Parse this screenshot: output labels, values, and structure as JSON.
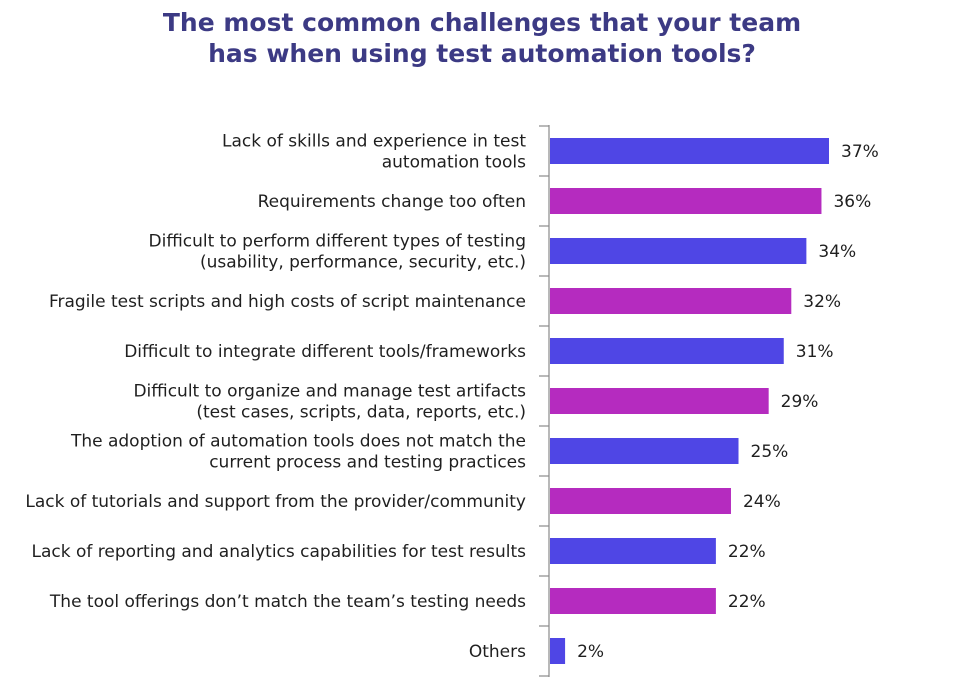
{
  "chart_data": {
    "type": "bar",
    "orientation": "horizontal",
    "title_lines": [
      "The most common challenges that your team",
      "has when using test automation tools?"
    ],
    "categories": [
      [
        "Lack of skills and experience in test",
        "automation tools"
      ],
      [
        "Requirements change too often"
      ],
      [
        "Difficult to perform different types of testing",
        "(usability, performance, security, etc.)"
      ],
      [
        "Fragile test scripts and high costs of script maintenance"
      ],
      [
        "Difficult to integrate different tools/frameworks"
      ],
      [
        "Difficult to organize and manage test artifacts",
        "(test cases, scripts, data, reports, etc.)"
      ],
      [
        "The adoption of automation tools does not match the",
        "current process and testing practices"
      ],
      [
        "Lack of tutorials and support from the provider/community"
      ],
      [
        "Lack of reporting and analytics capabilities for test results"
      ],
      [
        "The tool offerings don’t match the team’s testing needs"
      ],
      [
        "Others"
      ]
    ],
    "values": [
      37,
      36,
      34,
      32,
      31,
      29,
      25,
      24,
      22,
      22,
      2
    ],
    "value_labels": [
      "37%",
      "36%",
      "34%",
      "32%",
      "31%",
      "29%",
      "25%",
      "24%",
      "22%",
      "22%",
      "2%"
    ],
    "bar_colors": [
      "#4f46e5",
      "#b52bbf",
      "#4f46e5",
      "#b52bbf",
      "#4f46e5",
      "#b52bbf",
      "#4f46e5",
      "#b52bbf",
      "#4f46e5",
      "#b52bbf",
      "#4f46e5"
    ],
    "xlim": [
      0,
      37
    ],
    "axis_color": "#8a8a8a",
    "grid": false,
    "legend": "none"
  }
}
